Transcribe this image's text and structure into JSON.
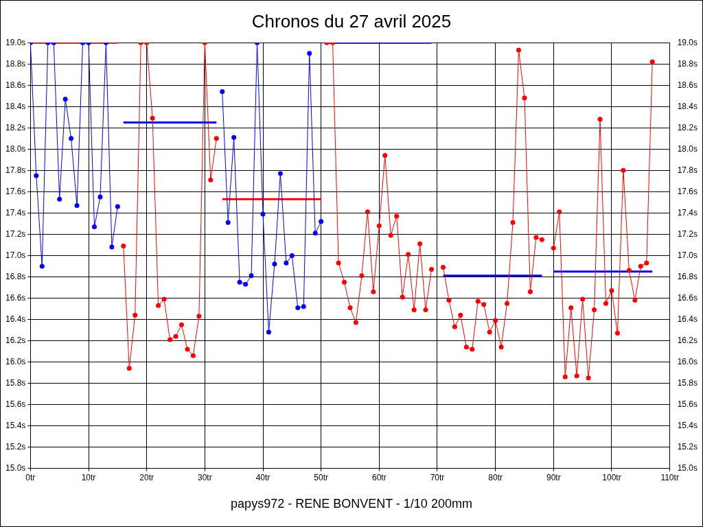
{
  "chart_data": {
    "type": "line",
    "title": "Chronos du 27 avril 2025",
    "annotations": [
      "papys972 - RENE BONVENT - 1/10 200mm"
    ],
    "xlim": [
      0,
      110
    ],
    "xticks": [
      {
        "value": 0,
        "label": "0tr"
      },
      {
        "value": 10,
        "label": "10tr"
      },
      {
        "value": 20,
        "label": "20tr"
      },
      {
        "value": 30,
        "label": "30tr"
      },
      {
        "value": 40,
        "label": "40tr"
      },
      {
        "value": 50,
        "label": "50tr"
      },
      {
        "value": 60,
        "label": "60tr"
      },
      {
        "value": 70,
        "label": "70tr"
      },
      {
        "value": 80,
        "label": "80tr"
      },
      {
        "value": 90,
        "label": "90tr"
      },
      {
        "value": 100,
        "label": "100tr"
      },
      {
        "value": 110,
        "label": "110tr"
      }
    ],
    "ylim": [
      15.0,
      19.0
    ],
    "yticks": [
      {
        "value": 15.0,
        "label": "15.0s"
      },
      {
        "value": 15.2,
        "label": "15.2s"
      },
      {
        "value": 15.4,
        "label": "15.4s"
      },
      {
        "value": 15.6,
        "label": "15.6s"
      },
      {
        "value": 15.8,
        "label": "15.8s"
      },
      {
        "value": 16.0,
        "label": "16.0s"
      },
      {
        "value": 16.2,
        "label": "16.2s"
      },
      {
        "value": 16.4,
        "label": "16.4s"
      },
      {
        "value": 16.6,
        "label": "16.6s"
      },
      {
        "value": 16.8,
        "label": "16.8s"
      },
      {
        "value": 17.0,
        "label": "17.0s"
      },
      {
        "value": 17.2,
        "label": "17.2s"
      },
      {
        "value": 17.4,
        "label": "17.4s"
      },
      {
        "value": 17.6,
        "label": "17.6s"
      },
      {
        "value": 17.8,
        "label": "17.8s"
      },
      {
        "value": 18.0,
        "label": "18.0s"
      },
      {
        "value": 18.2,
        "label": "18.2s"
      },
      {
        "value": 18.4,
        "label": "18.4s"
      },
      {
        "value": 18.6,
        "label": "18.6s"
      },
      {
        "value": 18.8,
        "label": "18.8s"
      },
      {
        "value": 19.0,
        "label": "19.0s"
      }
    ],
    "y2lim": [
      15.0,
      19.0
    ],
    "y2ticks": [
      {
        "value": 15.0,
        "label": "15.0s"
      },
      {
        "value": 15.2,
        "label": "15.2s"
      },
      {
        "value": 15.4,
        "label": "15.4s"
      },
      {
        "value": 15.6,
        "label": "15.6s"
      },
      {
        "value": 15.8,
        "label": "15.8s"
      },
      {
        "value": 16.0,
        "label": "16.0s"
      },
      {
        "value": 16.2,
        "label": "16.2s"
      },
      {
        "value": 16.4,
        "label": "16.4s"
      },
      {
        "value": 16.6,
        "label": "16.6s"
      },
      {
        "value": 16.8,
        "label": "16.8s"
      },
      {
        "value": 17.0,
        "label": "17.0s"
      },
      {
        "value": 17.2,
        "label": "17.2s"
      },
      {
        "value": 17.4,
        "label": "17.4s"
      },
      {
        "value": 17.6,
        "label": "17.6s"
      },
      {
        "value": 17.8,
        "label": "17.8s"
      },
      {
        "value": 18.0,
        "label": "18.0s"
      },
      {
        "value": 18.2,
        "label": "18.2s"
      },
      {
        "value": 18.4,
        "label": "18.4s"
      },
      {
        "value": 18.6,
        "label": "18.6s"
      },
      {
        "value": 18.8,
        "label": "18.8s"
      },
      {
        "value": 19.0,
        "label": "19.0s"
      }
    ],
    "grid": true,
    "legend": false,
    "marker": "circle",
    "line_style": "solid",
    "series": [
      {
        "color": "#0000ff",
        "x": [
          0,
          1,
          2,
          3,
          4,
          5,
          6,
          7,
          8,
          9,
          10,
          11,
          12,
          13,
          14,
          15
        ],
        "values": [
          19.0,
          17.75,
          16.9,
          19.0,
          19.0,
          17.53,
          18.47,
          18.1,
          17.47,
          19.0,
          19.0,
          17.27,
          17.55,
          19.0,
          17.08,
          17.46
        ]
      },
      {
        "color": "#ff0000",
        "x": [
          16,
          17,
          18,
          19,
          20,
          21,
          22,
          23,
          24,
          25,
          26,
          27,
          28,
          29,
          30,
          31,
          32
        ],
        "values": [
          17.09,
          15.94,
          16.44,
          19.0,
          19.0,
          18.29,
          16.53,
          16.59,
          16.21,
          16.24,
          16.35,
          16.12,
          16.06,
          16.43,
          19.0,
          17.71,
          18.1
        ]
      },
      {
        "color": "#0000ff",
        "x": [
          33,
          34,
          35,
          36,
          37,
          38,
          39,
          40,
          41,
          42,
          43,
          44,
          45,
          46,
          47,
          48,
          49,
          50
        ],
        "values": [
          18.54,
          17.31,
          18.11,
          16.75,
          16.73,
          16.81,
          19.0,
          17.39,
          16.28,
          16.92,
          17.77,
          16.93,
          17.0,
          16.51,
          16.52,
          18.9,
          17.21,
          17.32
        ]
      },
      {
        "color": "#ff0000",
        "x": [
          51,
          52,
          53,
          54,
          55,
          56,
          57,
          58,
          59,
          60,
          61,
          62,
          63,
          64,
          65,
          66,
          67,
          68,
          69
        ],
        "values": [
          19.0,
          19.0,
          16.93,
          16.75,
          16.51,
          16.37,
          16.81,
          17.41,
          16.66,
          17.28,
          17.94,
          17.19,
          17.37,
          16.61,
          17.01,
          16.49,
          17.11,
          16.49,
          16.87
        ]
      },
      {
        "color": "#ff0000",
        "x": [
          71,
          72,
          73,
          74,
          75,
          76,
          77,
          78,
          79,
          80,
          81,
          82,
          83,
          84,
          85,
          86,
          87,
          88
        ],
        "values": [
          16.89,
          16.58,
          16.33,
          16.44,
          16.14,
          16.12,
          16.57,
          16.54,
          16.28,
          16.39,
          16.14,
          16.55,
          17.31,
          18.93,
          18.48,
          16.66,
          17.17,
          17.15
        ]
      },
      {
        "color": "#ff0000",
        "x": [
          90,
          91,
          92,
          93,
          94,
          95,
          96,
          97,
          98,
          99,
          100,
          101,
          102,
          103,
          104,
          105,
          106,
          107
        ],
        "values": [
          17.07,
          17.41,
          15.86,
          16.51,
          15.87,
          16.59,
          15.85,
          16.49,
          18.28,
          16.55,
          16.67,
          16.27,
          17.8,
          16.86,
          16.58,
          16.9,
          16.93,
          18.82
        ]
      },
      {
        "color": "#ff0000",
        "marker": "none",
        "x": [
          0,
          15
        ],
        "values": [
          19.0,
          19.0
        ]
      },
      {
        "color": "#0000ff",
        "marker": "none",
        "x": [
          16,
          32
        ],
        "values": [
          18.25,
          18.25
        ]
      },
      {
        "color": "#ff0000",
        "marker": "none",
        "x": [
          33,
          50
        ],
        "values": [
          17.53,
          17.53
        ]
      },
      {
        "color": "#0000ff",
        "marker": "none",
        "x": [
          51,
          69
        ],
        "values": [
          19.0,
          19.0
        ]
      },
      {
        "color": "#0000ff",
        "marker": "none",
        "x": [
          71,
          88
        ],
        "values": [
          16.81,
          16.81
        ]
      },
      {
        "color": "#0000ff",
        "marker": "none",
        "x": [
          90,
          107
        ],
        "values": [
          16.85,
          16.85
        ]
      }
    ]
  }
}
